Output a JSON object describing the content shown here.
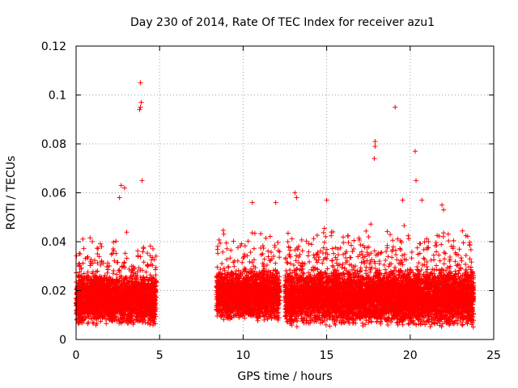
{
  "chart_data": {
    "type": "scatter",
    "title": "Day 230 of 2014, Rate Of TEC Index for receiver azu1",
    "xlabel": "GPS time / hours",
    "ylabel": "ROTI / TECUs",
    "xlim": [
      0,
      25
    ],
    "ylim": [
      0,
      0.12
    ],
    "xticks": [
      0,
      5,
      10,
      15,
      20,
      25
    ],
    "yticks": [
      0,
      0.02,
      0.04,
      0.06,
      0.08,
      0.1,
      0.12
    ],
    "x_tick_labels": [
      "0",
      "5",
      "10",
      "15",
      "20",
      "25"
    ],
    "y_tick_labels": [
      "0",
      "0.02",
      "0.04",
      "0.06",
      "0.08",
      "0.1",
      "0.12"
    ],
    "grid": true,
    "marker": "+",
    "color": "#ff0000",
    "series": [
      {
        "name": "ROTI",
        "segments": [
          {
            "x_start": 0.0,
            "x_end": 4.8,
            "y_base": 0.016,
            "y_spread": 0.014
          },
          {
            "x_start": 8.4,
            "x_end": 12.2,
            "y_base": 0.018,
            "y_spread": 0.014
          },
          {
            "x_start": 12.5,
            "x_end": 23.8,
            "y_base": 0.017,
            "y_spread": 0.016
          }
        ],
        "notable_points": [
          {
            "x": 3.85,
            "y": 0.105
          },
          {
            "x": 3.9,
            "y": 0.097
          },
          {
            "x": 3.85,
            "y": 0.095
          },
          {
            "x": 3.8,
            "y": 0.094
          },
          {
            "x": 3.95,
            "y": 0.065
          },
          {
            "x": 2.7,
            "y": 0.063
          },
          {
            "x": 2.9,
            "y": 0.062
          },
          {
            "x": 2.6,
            "y": 0.058
          },
          {
            "x": 10.55,
            "y": 0.056
          },
          {
            "x": 11.95,
            "y": 0.056
          },
          {
            "x": 13.1,
            "y": 0.06
          },
          {
            "x": 13.2,
            "y": 0.058
          },
          {
            "x": 15.0,
            "y": 0.057
          },
          {
            "x": 17.9,
            "y": 0.081
          },
          {
            "x": 17.9,
            "y": 0.079
          },
          {
            "x": 17.85,
            "y": 0.074
          },
          {
            "x": 19.1,
            "y": 0.095
          },
          {
            "x": 20.3,
            "y": 0.077
          },
          {
            "x": 20.35,
            "y": 0.065
          },
          {
            "x": 21.9,
            "y": 0.055
          },
          {
            "x": 22.0,
            "y": 0.053
          },
          {
            "x": 19.55,
            "y": 0.057
          },
          {
            "x": 20.7,
            "y": 0.057
          }
        ]
      }
    ]
  }
}
